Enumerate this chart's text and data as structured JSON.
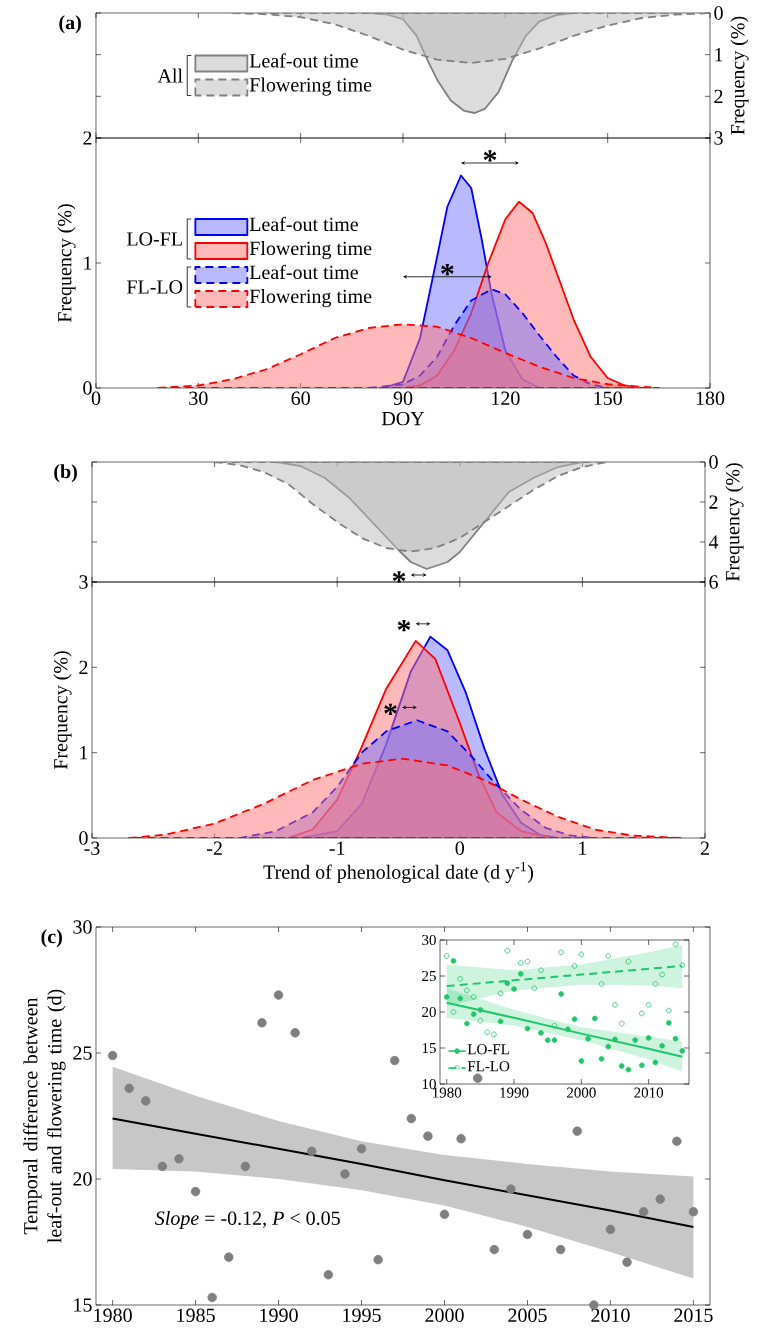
{
  "chart_data": [
    {
      "type": "area",
      "title": "(a)",
      "xlim": [
        0,
        180
      ],
      "ylim": [
        3,
        0
      ],
      "yticks": [
        0,
        1,
        2,
        3
      ],
      "ylabel": "Frequency (%)",
      "tick_labels": "y",
      "legend": "center left",
      "legend_title": "All",
      "series": [
        {
          "name": "Leaf-out time",
          "color": "#808080",
          "line_style": "solid",
          "x": [
            80,
            85,
            90,
            94,
            97,
            100,
            104,
            108,
            111,
            114,
            118,
            122,
            126,
            130,
            135,
            140
          ],
          "values": [
            0,
            0.03,
            0.15,
            0.55,
            1.1,
            1.6,
            2.1,
            2.35,
            2.4,
            2.3,
            1.9,
            1.15,
            0.55,
            0.2,
            0.05,
            0
          ]
        },
        {
          "name": "Flowering time",
          "color": "#808080",
          "line_style": "dashed",
          "x": [
            40,
            50,
            60,
            70,
            80,
            90,
            100,
            110,
            120,
            130,
            140,
            150,
            160,
            170,
            180
          ],
          "values": [
            0,
            0.03,
            0.1,
            0.27,
            0.55,
            0.88,
            1.12,
            1.2,
            1.1,
            0.85,
            0.55,
            0.3,
            0.12,
            0.04,
            0
          ]
        }
      ]
    },
    {
      "type": "area",
      "xlim": [
        0,
        180
      ],
      "xticks": [
        0,
        30,
        60,
        90,
        120,
        150,
        180
      ],
      "xlabel": "DOY",
      "ylim": [
        0,
        2
      ],
      "yticks": [
        0,
        1,
        2
      ],
      "ylabel": "Frequency (%)",
      "legend": "center left",
      "annotations": [
        "*",
        "*",
        "LO-FL",
        "FL-LO"
      ],
      "series": [
        {
          "name": "Leaf-out time",
          "color": "#0000ff",
          "line_style": "solid",
          "x": [
            84,
            90,
            95,
            100,
            103,
            107,
            110,
            113,
            116,
            120,
            125,
            130
          ],
          "values": [
            0,
            0.05,
            0.4,
            1.05,
            1.45,
            1.7,
            1.6,
            1.2,
            0.75,
            0.3,
            0.07,
            0
          ]
        },
        {
          "name": "Flowering time",
          "color": "#ff0000",
          "line_style": "solid",
          "x": [
            90,
            95,
            100,
            105,
            110,
            115,
            120,
            124,
            128,
            132,
            136,
            140,
            145,
            150,
            155,
            160
          ],
          "values": [
            0,
            0.02,
            0.1,
            0.3,
            0.6,
            1.0,
            1.35,
            1.49,
            1.4,
            1.15,
            0.85,
            0.55,
            0.25,
            0.08,
            0.02,
            0
          ]
        },
        {
          "name": "Leaf-out time",
          "color": "#0000ff",
          "line_style": "dashed",
          "x": [
            80,
            90,
            95,
            100,
            105,
            110,
            116,
            120,
            125,
            130,
            135,
            140,
            145,
            150
          ],
          "values": [
            0,
            0.03,
            0.1,
            0.25,
            0.5,
            0.7,
            0.79,
            0.75,
            0.6,
            0.42,
            0.25,
            0.1,
            0.03,
            0
          ]
        },
        {
          "name": "Flowering time",
          "color": "#ff0000",
          "line_style": "dashed",
          "x": [
            18,
            30,
            40,
            50,
            60,
            70,
            80,
            90,
            100,
            110,
            120,
            130,
            140,
            150,
            160,
            165
          ],
          "values": [
            0,
            0.02,
            0.07,
            0.15,
            0.27,
            0.4,
            0.48,
            0.51,
            0.49,
            0.4,
            0.28,
            0.17,
            0.08,
            0.03,
            0.01,
            0
          ]
        }
      ]
    },
    {
      "type": "area",
      "title": "(b)",
      "xlim": [
        -3,
        2
      ],
      "ylim": [
        6,
        0
      ],
      "yticks": [
        0,
        2,
        4,
        6
      ],
      "ylabel": "Frequency (%)",
      "tick_labels": "y",
      "annotations": [
        "*"
      ],
      "series": [
        {
          "color": "#808080",
          "line_style": "solid",
          "x": [
            -1.5,
            -1.3,
            -1.1,
            -0.9,
            -0.7,
            -0.5,
            -0.4,
            -0.27,
            -0.1,
            0,
            0.2,
            0.4,
            0.6,
            0.8,
            1.0
          ],
          "values": [
            0,
            0.2,
            0.8,
            1.8,
            3.1,
            4.4,
            5.0,
            5.35,
            5.0,
            4.5,
            3.0,
            1.5,
            0.8,
            0.25,
            0
          ]
        },
        {
          "color": "#808080",
          "line_style": "dashed",
          "x": [
            -2.0,
            -1.8,
            -1.6,
            -1.4,
            -1.2,
            -1.0,
            -0.8,
            -0.6,
            -0.4,
            -0.2,
            0,
            0.2,
            0.4,
            0.6,
            0.8,
            1.0,
            1.2
          ],
          "values": [
            0,
            0.15,
            0.5,
            1.1,
            2.1,
            3.0,
            3.8,
            4.3,
            4.48,
            4.3,
            3.8,
            3.0,
            2.2,
            1.4,
            0.7,
            0.25,
            0
          ]
        }
      ]
    },
    {
      "type": "area",
      "xlim": [
        -3,
        2
      ],
      "xticks": [
        -3,
        -2,
        -1,
        0,
        1,
        2
      ],
      "xlabel": "Trend of phenological date (d y$^{-1}$)",
      "ylim": [
        0,
        3
      ],
      "yticks": [
        0,
        1,
        2,
        3
      ],
      "ylabel": "Frequency (%)",
      "annotations": [
        "*",
        "*"
      ],
      "series": [
        {
          "color": "#0000ff",
          "line_style": "solid",
          "x": [
            -1.3,
            -1.0,
            -0.8,
            -0.6,
            -0.4,
            -0.24,
            -0.1,
            0.05,
            0.2,
            0.35,
            0.5,
            0.65,
            0.8
          ],
          "values": [
            0,
            0.08,
            0.4,
            1.1,
            1.95,
            2.36,
            2.2,
            1.7,
            1.05,
            0.5,
            0.18,
            0.04,
            0
          ]
        },
        {
          "color": "#ff0000",
          "line_style": "solid",
          "x": [
            -1.4,
            -1.2,
            -1.0,
            -0.82,
            -0.6,
            -0.36,
            -0.2,
            0,
            0.15,
            0.3,
            0.5,
            0.75
          ],
          "values": [
            0,
            0.1,
            0.45,
            1.0,
            1.75,
            2.31,
            2.1,
            1.35,
            0.75,
            0.3,
            0.08,
            0
          ]
        },
        {
          "color": "#0000ff",
          "line_style": "dashed",
          "x": [
            -1.8,
            -1.5,
            -1.2,
            -1.0,
            -0.8,
            -0.6,
            -0.35,
            -0.1,
            0.1,
            0.3,
            0.5,
            0.7,
            0.9,
            1.1
          ],
          "values": [
            0,
            0.08,
            0.3,
            0.6,
            1.0,
            1.25,
            1.38,
            1.25,
            0.95,
            0.62,
            0.33,
            0.12,
            0.03,
            0
          ]
        },
        {
          "color": "#ff0000",
          "line_style": "dashed",
          "x": [
            -2.7,
            -2.4,
            -2.0,
            -1.6,
            -1.2,
            -0.8,
            -0.47,
            -0.1,
            0.2,
            0.5,
            0.8,
            1.1,
            1.4,
            1.8
          ],
          "values": [
            0,
            0.04,
            0.17,
            0.4,
            0.68,
            0.87,
            0.93,
            0.85,
            0.68,
            0.45,
            0.25,
            0.1,
            0.03,
            0
          ]
        }
      ]
    },
    {
      "type": "scatter",
      "title": "(c)",
      "xlim": [
        1979,
        2016
      ],
      "xticks": [
        1980,
        1985,
        1990,
        1995,
        2000,
        2005,
        2010,
        2015
      ],
      "ylim": [
        15,
        30
      ],
      "yticks": [
        15,
        20,
        25,
        30
      ],
      "ylabel": "Temporal difference between leaf-out and flowering time (d)",
      "annotations": [
        "*Slope* = -0.12, *P* < 0.05"
      ],
      "series": [
        {
          "type": "line",
          "color": "#000000",
          "line_style": "solid",
          "x": [
            1980,
            1985,
            1990,
            1995,
            2000,
            2005,
            2010,
            2015
          ],
          "values": [
            22.4,
            21.8,
            21.2,
            20.6,
            19.95,
            19.35,
            18.75,
            18.1
          ],
          "lower": [
            20.4,
            20.3,
            20.0,
            19.55,
            18.95,
            18.1,
            17.1,
            16.05
          ],
          "upper": [
            24.45,
            23.3,
            22.3,
            21.5,
            20.95,
            20.6,
            20.3,
            20.1
          ]
        },
        {
          "type": "scatter",
          "marker": "circle",
          "color": "#7f7f7f",
          "x": [
            1980,
            1981,
            1982,
            1983,
            1984,
            1985,
            1986,
            1987,
            1988,
            1989,
            1990,
            1991,
            1992,
            1993,
            1994,
            1995,
            1996,
            1997,
            1998,
            1999,
            2000,
            2001,
            2002,
            2003,
            2004,
            2005,
            2007,
            2008,
            2009,
            2010,
            2011,
            2012,
            2013,
            2014,
            2015
          ],
          "values": [
            24.9,
            23.6,
            23.1,
            20.5,
            20.8,
            19.5,
            15.3,
            16.9,
            20.5,
            26.2,
            27.3,
            25.8,
            21.1,
            16.2,
            20.2,
            21.2,
            16.8,
            24.7,
            22.4,
            21.7,
            18.6,
            21.6,
            24.0,
            17.2,
            19.6,
            17.8,
            17.2,
            21.9,
            15.0,
            18.0,
            16.7,
            18.7,
            19.2,
            21.5,
            18.7
          ]
        }
      ]
    },
    {
      "type": "scatter",
      "xlim": [
        1979,
        2016
      ],
      "xticks": [
        1980,
        1990,
        2000,
        2010
      ],
      "ylim": [
        10,
        30
      ],
      "yticks": [
        10,
        15,
        20,
        25,
        30
      ],
      "legend": "bottom left",
      "series": [
        {
          "type": "line",
          "color": "#1fc76a",
          "line_style": "solid",
          "x": [
            1980,
            1990,
            2000,
            2010,
            2015
          ],
          "values": [
            21.3,
            19.2,
            17.0,
            14.9,
            13.8
          ],
          "lower": [
            19.2,
            18.1,
            16.1,
            13.4,
            11.7
          ],
          "upper": [
            23.3,
            20.3,
            17.9,
            16.6,
            15.9
          ]
        },
        {
          "type": "line",
          "color": "#1fc76a",
          "line_style": "dashed",
          "x": [
            1980,
            1990,
            2000,
            2010,
            2015
          ],
          "values": [
            23.6,
            24.4,
            25.2,
            26.0,
            26.4
          ],
          "lower": [
            20.8,
            23.0,
            23.8,
            23.7,
            23.3
          ],
          "upper": [
            26.6,
            25.8,
            26.6,
            28.3,
            29.3
          ]
        },
        {
          "type": "scatter",
          "name": "LO-FL",
          "marker": "circle",
          "color": "#1fc76a",
          "x": [
            1980,
            1981,
            1982,
            1983,
            1984,
            1985,
            1988,
            1989,
            1990,
            1991,
            1992,
            1994,
            1995,
            1996,
            1997,
            1998,
            1999,
            2000,
            2001,
            2002,
            2003,
            2004,
            2005,
            2006,
            2007,
            2008,
            2009,
            2010,
            2011,
            2012,
            2013,
            2014,
            2015
          ],
          "values": [
            22.1,
            27.1,
            21.9,
            18.4,
            19.7,
            20.3,
            18.7,
            24.0,
            23.2,
            25.3,
            17.7,
            17.1,
            16.1,
            16.1,
            22.5,
            17.6,
            19.0,
            13.2,
            16.3,
            19.1,
            13.5,
            15.2,
            16.2,
            12.5,
            12.0,
            16.1,
            12.6,
            16.4,
            13.0,
            15.3,
            18.5,
            16.3,
            14.6
          ]
        },
        {
          "type": "scatter",
          "name": "FL-LO",
          "marker": "open circle",
          "color": "#1fc76a",
          "x": [
            1980,
            1981,
            1982,
            1983,
            1984,
            1985,
            1986,
            1987,
            1988,
            1989,
            1991,
            1992,
            1993,
            1994,
            1996,
            1997,
            1999,
            2000,
            2003,
            2004,
            2005,
            2006,
            2007,
            2009,
            2010,
            2011,
            2012,
            2013,
            2014,
            2015
          ],
          "values": [
            27.8,
            20.0,
            24.6,
            23.0,
            22.1,
            18.8,
            17.2,
            16.9,
            22.6,
            28.5,
            26.8,
            27.0,
            23.3,
            25.8,
            18.1,
            28.3,
            26.4,
            28.0,
            23.9,
            27.8,
            21.0,
            18.4,
            27.0,
            19.8,
            21.0,
            23.9,
            25.2,
            20.2,
            29.4,
            26.5
          ]
        }
      ]
    }
  ]
}
